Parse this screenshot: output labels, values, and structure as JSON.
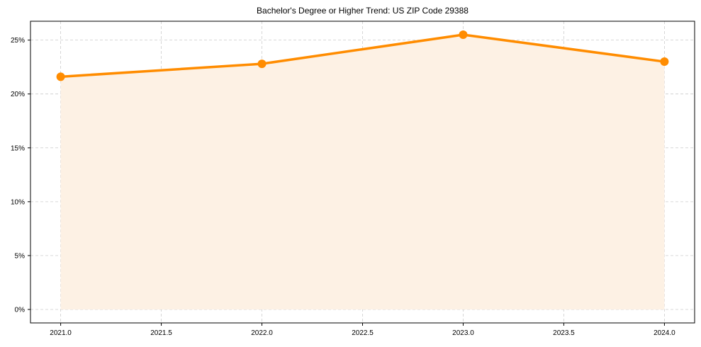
{
  "chart_data": {
    "type": "line",
    "title": "Bachelor's Degree or Higher Trend: US ZIP Code 29388",
    "xlabel": "",
    "ylabel": "",
    "x": [
      2021,
      2022,
      2023,
      2024
    ],
    "series": [
      {
        "name": "Bachelor's Degree or Higher",
        "values": [
          21.6,
          22.8,
          25.5,
          23.0
        ],
        "unit": "%"
      }
    ],
    "xticks": [
      "2021.0",
      "2021.5",
      "2022.0",
      "2022.5",
      "2023.0",
      "2023.5",
      "2024.0"
    ],
    "xtick_values": [
      2021.0,
      2021.5,
      2022.0,
      2022.5,
      2023.0,
      2023.5,
      2024.0
    ],
    "yticks": [
      "0%",
      "5%",
      "10%",
      "15%",
      "20%",
      "25%"
    ],
    "ytick_values": [
      0,
      5,
      10,
      15,
      20,
      25
    ],
    "xlim": [
      2020.85,
      2024.15
    ],
    "ylim": [
      -1.25,
      26.75
    ],
    "grid": true,
    "grid_style": "dashed",
    "fill_under_line": true,
    "markers": true,
    "legend": null,
    "colors": {
      "line": "#ff8c00",
      "fill": "#fdf1e4",
      "grid": "#cccccc"
    }
  }
}
